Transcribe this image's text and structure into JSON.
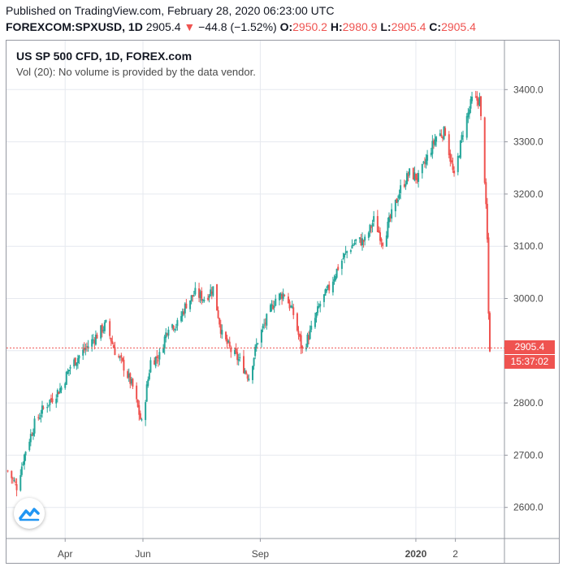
{
  "header": {
    "published": "Published on TradingView.com, February 28, 2020 06:23:00 UTC",
    "symbol": "FOREXCOM:SPXUSD, 1D",
    "last": "2905.4",
    "change_arrow": "▼",
    "change": "−44.8 (−1.52%)",
    "open_label": "O:",
    "open": "2950.2",
    "high_label": "H:",
    "high": "2980.9",
    "low_label": "L:",
    "low": "2905.4",
    "close_label": "C:",
    "close": "2905.4"
  },
  "legend": {
    "title": "US SP 500 CFD, 1D, FOREX.com",
    "volume_note": "Vol (20): No volume is provided by the data vendor."
  },
  "price_tag": {
    "price": "2905.4",
    "countdown": "15:37:02"
  },
  "colors": {
    "up": "#26a69a",
    "down": "#ef5350",
    "grid": "#e6e9ef",
    "axis_border": "#9598a1"
  },
  "logo_icon": "tradingview-logo-icon",
  "chart_data": {
    "type": "candlestick",
    "title": "US SP 500 CFD, 1D, FOREX.com",
    "ylim": [
      2550,
      3450
    ],
    "y_ticks": [
      {
        "value": 3400,
        "label": "3400.0"
      },
      {
        "value": 3300,
        "label": "3300.0"
      },
      {
        "value": 3200,
        "label": "3200.0"
      },
      {
        "value": 3100,
        "label": "3100.0"
      },
      {
        "value": 3000,
        "label": "3000.0"
      },
      {
        "value": 2800,
        "label": "2800.0"
      },
      {
        "value": 2700,
        "label": "2700.0"
      },
      {
        "value": 2600,
        "label": "2600.0"
      }
    ],
    "x_ticks": [
      {
        "date": "2019-04-01",
        "label": "Apr",
        "bold": false
      },
      {
        "date": "2019-06-01",
        "label": "Jun",
        "bold": false
      },
      {
        "date": "2019-09-01",
        "label": "Sep",
        "bold": false
      },
      {
        "date": "2020-01-01",
        "label": "2020",
        "bold": true
      },
      {
        "date": "2020-02-01",
        "label": "2",
        "bold": false
      }
    ],
    "x_range": [
      "2019-02-14",
      "2020-02-28"
    ],
    "grid": true,
    "last_price": 2905.4,
    "close_path": [
      [
        "2019-02-15",
        2670
      ],
      [
        "2019-02-22",
        2640
      ],
      [
        "2019-03-01",
        2710
      ],
      [
        "2019-03-08",
        2760
      ],
      [
        "2019-03-15",
        2790
      ],
      [
        "2019-03-22",
        2810
      ],
      [
        "2019-03-29",
        2830
      ],
      [
        "2019-04-05",
        2870
      ],
      [
        "2019-04-12",
        2890
      ],
      [
        "2019-04-19",
        2910
      ],
      [
        "2019-04-26",
        2930
      ],
      [
        "2019-05-03",
        2950
      ],
      [
        "2019-05-10",
        2900
      ],
      [
        "2019-05-17",
        2870
      ],
      [
        "2019-05-24",
        2830
      ],
      [
        "2019-05-31",
        2760
      ],
      [
        "2019-06-07",
        2880
      ],
      [
        "2019-06-14",
        2890
      ],
      [
        "2019-06-21",
        2950
      ],
      [
        "2019-06-28",
        2950
      ],
      [
        "2019-07-05",
        2990
      ],
      [
        "2019-07-12",
        3010
      ],
      [
        "2019-07-19",
        3000
      ],
      [
        "2019-07-26",
        3020
      ],
      [
        "2019-08-02",
        2930
      ],
      [
        "2019-08-09",
        2900
      ],
      [
        "2019-08-16",
        2880
      ],
      [
        "2019-08-23",
        2850
      ],
      [
        "2019-08-30",
        2920
      ],
      [
        "2019-09-06",
        2960
      ],
      [
        "2019-09-13",
        3000
      ],
      [
        "2019-09-20",
        3010
      ],
      [
        "2019-09-27",
        2970
      ],
      [
        "2019-10-04",
        2900
      ],
      [
        "2019-10-11",
        2940
      ],
      [
        "2019-10-18",
        2990
      ],
      [
        "2019-10-25",
        3020
      ],
      [
        "2019-11-01",
        3060
      ],
      [
        "2019-11-08",
        3090
      ],
      [
        "2019-11-15",
        3110
      ],
      [
        "2019-11-22",
        3110
      ],
      [
        "2019-11-29",
        3150
      ],
      [
        "2019-12-06",
        3110
      ],
      [
        "2019-12-13",
        3160
      ],
      [
        "2019-12-20",
        3210
      ],
      [
        "2019-12-27",
        3240
      ],
      [
        "2020-01-03",
        3230
      ],
      [
        "2020-01-10",
        3270
      ],
      [
        "2020-01-17",
        3310
      ],
      [
        "2020-01-24",
        3320
      ],
      [
        "2020-01-31",
        3230
      ],
      [
        "2020-02-07",
        3320
      ],
      [
        "2020-02-14",
        3380
      ],
      [
        "2020-02-20",
        3380
      ],
      [
        "2020-02-24",
        3230
      ],
      [
        "2020-02-26",
        3110
      ],
      [
        "2020-02-27",
        2970
      ],
      [
        "2020-02-28",
        2905.4
      ]
    ]
  }
}
